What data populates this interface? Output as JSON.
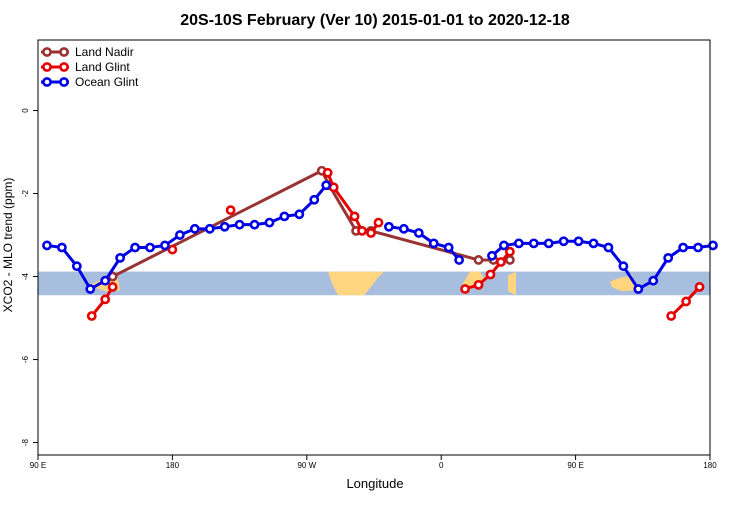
{
  "chart_data": {
    "type": "line",
    "title": "20S-10S February (Ver 10)   2015-01-01 to 2020-12-18",
    "xlabel": "Longitude",
    "ylabel": "XCO2 - MLO trend (ppm)",
    "xlim": [
      90,
      540
    ],
    "ylim": [
      -8.3,
      1.7
    ],
    "x_ticks": [
      {
        "value": 90,
        "label": "90 E"
      },
      {
        "value": 180,
        "label": "180"
      },
      {
        "value": 270,
        "label": "90 W"
      },
      {
        "value": 360,
        "label": "0"
      },
      {
        "value": 450,
        "label": "90 E"
      },
      {
        "value": 540,
        "label": "180"
      }
    ],
    "y_ticks": [
      {
        "value": 0,
        "label": "0"
      },
      {
        "value": -2,
        "label": "-2"
      },
      {
        "value": -4,
        "label": "-4"
      },
      {
        "value": -6,
        "label": "-6"
      },
      {
        "value": -8,
        "label": "-8"
      }
    ],
    "grid": false,
    "legend_position": "top-left",
    "series": [
      {
        "name": "Land Nadir",
        "color": "#993333",
        "points": [
          [
            140,
            -4.0
          ],
          [
            280,
            -1.45
          ],
          [
            285,
            -1.8
          ],
          [
            303,
            -2.9
          ],
          [
            313,
            -2.9
          ],
          [
            385,
            -3.6
          ],
          [
            395,
            -3.6
          ],
          [
            406,
            -3.6
          ]
        ]
      },
      {
        "name": "Land Glint",
        "color": "#e60000",
        "points": [
          [
            126,
            -4.95
          ],
          [
            135,
            -4.55
          ],
          [
            140,
            -4.25
          ],
          null,
          [
            180,
            -3.35
          ],
          null,
          [
            219,
            -2.4
          ],
          null,
          [
            284,
            -1.5
          ],
          [
            288,
            -1.85
          ],
          [
            302,
            -2.55
          ],
          [
            307,
            -2.9
          ],
          [
            313,
            -2.95
          ],
          [
            318,
            -2.7
          ],
          null,
          [
            376,
            -4.3
          ],
          [
            385,
            -4.2
          ],
          [
            393,
            -3.95
          ],
          [
            400,
            -3.65
          ],
          [
            406,
            -3.4
          ],
          null,
          [
            514,
            -4.95
          ],
          [
            524,
            -4.6
          ],
          [
            533,
            -4.25
          ]
        ]
      },
      {
        "name": "Ocean Glint",
        "color": "#0000e6",
        "points": [
          [
            96,
            -3.25
          ],
          [
            106,
            -3.3
          ],
          [
            116,
            -3.75
          ],
          [
            125,
            -4.3
          ],
          [
            135,
            -4.1
          ],
          [
            145,
            -3.55
          ],
          [
            155,
            -3.3
          ],
          [
            165,
            -3.3
          ],
          [
            175,
            -3.25
          ],
          [
            185,
            -3.0
          ],
          [
            195,
            -2.85
          ],
          [
            205,
            -2.85
          ],
          [
            215,
            -2.8
          ],
          [
            225,
            -2.75
          ],
          [
            235,
            -2.75
          ],
          [
            245,
            -2.7
          ],
          [
            255,
            -2.55
          ],
          [
            265,
            -2.5
          ],
          [
            275,
            -2.15
          ],
          [
            283,
            -1.8
          ],
          null,
          [
            325,
            -2.8
          ],
          [
            335,
            -2.85
          ],
          [
            345,
            -2.95
          ],
          [
            355,
            -3.2
          ],
          [
            365,
            -3.3
          ],
          [
            372,
            -3.6
          ],
          null,
          [
            394,
            -3.5
          ],
          [
            402,
            -3.25
          ],
          [
            412,
            -3.2
          ],
          [
            422,
            -3.2
          ],
          [
            432,
            -3.2
          ],
          [
            442,
            -3.15
          ],
          [
            452,
            -3.15
          ],
          [
            462,
            -3.2
          ],
          [
            472,
            -3.3
          ],
          [
            482,
            -3.75
          ],
          [
            492,
            -4.3
          ],
          [
            502,
            -4.1
          ],
          [
            512,
            -3.55
          ],
          [
            522,
            -3.3
          ],
          [
            532,
            -3.3
          ],
          [
            542,
            -3.25
          ]
        ]
      }
    ]
  }
}
